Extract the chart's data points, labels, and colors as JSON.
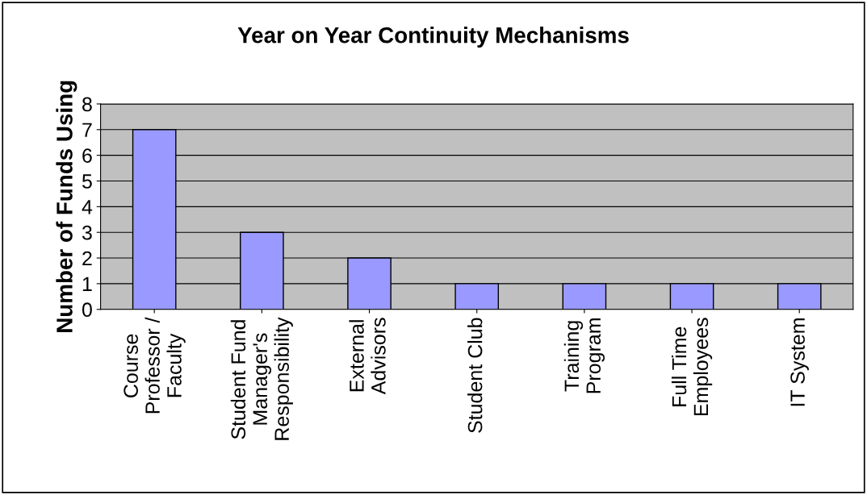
{
  "chart_data": {
    "type": "bar",
    "title": "Year on Year Continuity Mechanisms",
    "ylabel": "Number of Funds Using",
    "categories": [
      "Course\nProfessor /\nFaculty",
      "Student Fund\nManager's\nResponsibility",
      "External\nAdvisors",
      "Student Club",
      "Training\nProgram",
      "Full Time\nEmployees",
      "IT System"
    ],
    "values": [
      7,
      3,
      2,
      1,
      1,
      1,
      1
    ],
    "color": "#9999ff",
    "ylim": [
      0,
      8
    ],
    "yticks": [
      0,
      1,
      2,
      3,
      4,
      5,
      6,
      7,
      8
    ],
    "grid": "y"
  }
}
